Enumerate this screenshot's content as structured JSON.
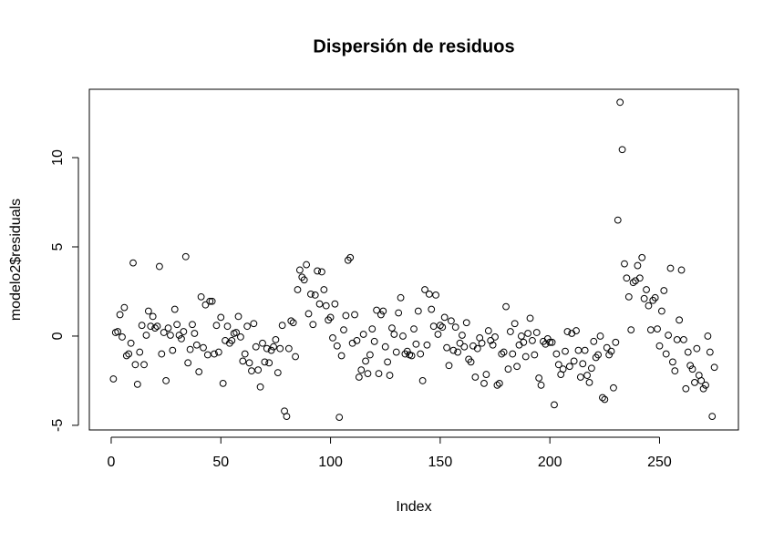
{
  "chart_data": {
    "type": "scatter",
    "title": "Dispersión de residuos",
    "x_label": "Index",
    "y_label": "modelo2$residuals",
    "marker": "open-circle",
    "color": "#000000",
    "xlim": [
      -9.96,
      285.96
    ],
    "ylim": [
      -5.26,
      13.83
    ],
    "xticks": [
      0,
      50,
      100,
      150,
      200,
      250
    ],
    "yticks": [
      -5,
      0,
      5,
      10
    ],
    "x": [
      1,
      2,
      3,
      4,
      5,
      6,
      7,
      8,
      9,
      10,
      11,
      12,
      13,
      14,
      15,
      16,
      17,
      18,
      19,
      20,
      21,
      22,
      23,
      24,
      25,
      26,
      27,
      28,
      29,
      30,
      31,
      32,
      33,
      34,
      35,
      36,
      37,
      38,
      39,
      40,
      41,
      42,
      43,
      44,
      45,
      46,
      47,
      48,
      49,
      50,
      51,
      52,
      53,
      54,
      55,
      56,
      57,
      58,
      59,
      60,
      61,
      62,
      63,
      64,
      65,
      66,
      67,
      68,
      69,
      70,
      71,
      72,
      73,
      74,
      75,
      76,
      77,
      78,
      79,
      80,
      81,
      82,
      83,
      84,
      85,
      86,
      87,
      88,
      89,
      90,
      91,
      92,
      93,
      94,
      95,
      96,
      97,
      98,
      99,
      100,
      101,
      102,
      103,
      104,
      105,
      106,
      107,
      108,
      109,
      110,
      111,
      112,
      113,
      114,
      115,
      116,
      117,
      118,
      119,
      120,
      121,
      122,
      123,
      124,
      125,
      126,
      127,
      128,
      129,
      130,
      131,
      132,
      133,
      134,
      135,
      136,
      137,
      138,
      139,
      140,
      141,
      142,
      143,
      144,
      145,
      146,
      147,
      148,
      149,
      150,
      151,
      152,
      153,
      154,
      155,
      156,
      157,
      158,
      159,
      160,
      161,
      162,
      163,
      164,
      165,
      166,
      167,
      168,
      169,
      170,
      171,
      172,
      173,
      174,
      175,
      176,
      177,
      178,
      179,
      180,
      181,
      182,
      183,
      184,
      185,
      186,
      187,
      188,
      189,
      190,
      191,
      192,
      193,
      194,
      195,
      196,
      197,
      198,
      199,
      200,
      201,
      202,
      203,
      204,
      205,
      206,
      207,
      208,
      209,
      210,
      211,
      212,
      213,
      214,
      215,
      216,
      217,
      218,
      219,
      220,
      221,
      222,
      223,
      224,
      225,
      226,
      227,
      228,
      229,
      230,
      231,
      232,
      233,
      234,
      235,
      236,
      237,
      238,
      239,
      240,
      241,
      242,
      243,
      244,
      245,
      246,
      247,
      248,
      249,
      250,
      251,
      252,
      253,
      254,
      255,
      256,
      257,
      258,
      259,
      260,
      261,
      262,
      263,
      264,
      265,
      266,
      267,
      268,
      269,
      270,
      271,
      272,
      273,
      274,
      275
    ],
    "values": [
      -2.4,
      0.2,
      0.25,
      1.2,
      -0.05,
      1.6,
      -1.1,
      -1.0,
      -0.4,
      4.1,
      -1.6,
      -2.7,
      -0.9,
      0.6,
      -1.6,
      0.05,
      1.4,
      0.55,
      1.1,
      0.45,
      0.55,
      3.9,
      -1.0,
      0.2,
      -2.5,
      0.45,
      0.05,
      -0.8,
      1.5,
      0.65,
      0.05,
      -0.15,
      0.25,
      4.45,
      -1.5,
      -0.75,
      0.65,
      0.15,
      -0.5,
      -2.0,
      2.2,
      -0.65,
      1.75,
      -1.05,
      1.95,
      1.95,
      -1.0,
      0.6,
      -0.9,
      1.05,
      -2.65,
      -0.25,
      0.55,
      -0.4,
      -0.25,
      0.15,
      0.2,
      1.1,
      -0.05,
      -1.4,
      -1.0,
      0.55,
      -1.5,
      -1.95,
      0.7,
      -0.6,
      -1.9,
      -2.85,
      -0.4,
      -1.45,
      -0.7,
      -1.5,
      -0.8,
      -0.6,
      -0.2,
      -2.05,
      -0.7,
      0.6,
      -4.2,
      -4.5,
      -0.7,
      0.85,
      0.75,
      -1.15,
      2.6,
      3.7,
      3.3,
      3.15,
      4.0,
      1.25,
      2.35,
      0.65,
      2.3,
      3.65,
      1.8,
      3.6,
      2.6,
      1.7,
      0.9,
      1.05,
      -0.1,
      1.8,
      -0.55,
      -4.55,
      -1.1,
      0.35,
      1.15,
      4.25,
      4.4,
      -0.4,
      1.2,
      -0.25,
      -2.3,
      -1.9,
      0.1,
      -1.4,
      -2.1,
      -1.05,
      0.4,
      -0.3,
      1.45,
      -2.1,
      1.2,
      1.4,
      -0.6,
      -1.45,
      -2.2,
      0.45,
      0.1,
      -0.9,
      1.3,
      2.15,
      0,
      -1.0,
      -0.85,
      -1.05,
      -1.1,
      0.4,
      -0.45,
      1.4,
      -1.0,
      -2.5,
      2.6,
      -0.5,
      2.35,
      1.5,
      0.55,
      2.3,
      0.1,
      0.6,
      0.5,
      1.05,
      -0.65,
      -1.65,
      0.85,
      -0.8,
      0.5,
      -0.9,
      -0.4,
      0.05,
      -0.6,
      0.75,
      -1.3,
      -1.45,
      -0.55,
      -2.3,
      -0.7,
      -0.1,
      -0.4,
      -2.65,
      -2.15,
      0.3,
      -0.25,
      -0.5,
      -0.05,
      -2.75,
      -2.65,
      -1.0,
      -0.9,
      1.65,
      -1.85,
      0.25,
      -1.0,
      0.7,
      -1.7,
      -0.5,
      0,
      -0.35,
      -1.15,
      0.15,
      1.0,
      -0.25,
      -1.05,
      0.2,
      -2.35,
      -2.75,
      -0.3,
      -0.45,
      -0.15,
      -0.35,
      -0.35,
      -3.85,
      -1.0,
      -1.6,
      -2.15,
      -1.85,
      -0.85,
      0.25,
      -1.7,
      0.15,
      -1.4,
      0.3,
      -0.8,
      -2.3,
      -1.55,
      -0.8,
      -2.2,
      -2.6,
      -1.8,
      -0.3,
      -1.2,
      -1.05,
      0,
      -3.45,
      -3.55,
      -0.65,
      -1.05,
      -0.85,
      -2.9,
      -0.35,
      6.5,
      13.1,
      10.45,
      4.05,
      3.25,
      2.2,
      0.35,
      3.0,
      3.1,
      3.95,
      3.25,
      4.4,
      2.1,
      2.6,
      1.7,
      0.35,
      2.0,
      2.15,
      0.4,
      -0.55,
      1.4,
      2.55,
      -1.0,
      0.05,
      3.8,
      -1.45,
      -1.95,
      -0.2,
      0.9,
      3.7,
      -0.2,
      -2.95,
      -0.9,
      -1.65,
      -1.85,
      -2.6,
      -0.7,
      -2.2,
      -2.5,
      -2.95,
      -2.75,
      0,
      -0.9,
      -4.5,
      -1.75
    ]
  }
}
